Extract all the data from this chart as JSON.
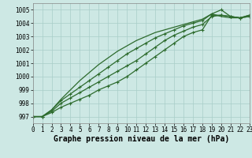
{
  "xlabel": "Graphe pression niveau de la mer (hPa)",
  "xlim": [
    0,
    23
  ],
  "ylim": [
    996.5,
    1005.5
  ],
  "yticks": [
    997,
    998,
    999,
    1000,
    1001,
    1002,
    1003,
    1004,
    1005
  ],
  "xticks": [
    0,
    1,
    2,
    3,
    4,
    5,
    6,
    7,
    8,
    9,
    10,
    11,
    12,
    13,
    14,
    15,
    16,
    17,
    18,
    19,
    20,
    21,
    22,
    23
  ],
  "bg_color": "#cde8e4",
  "grid_color": "#a8cec8",
  "line_color": "#2d6b2d",
  "series": [
    [
      997.0,
      997.0,
      997.3,
      997.7,
      998.0,
      998.3,
      998.6,
      999.0,
      999.3,
      999.6,
      1000.0,
      1000.5,
      1001.0,
      1001.5,
      1002.0,
      1002.5,
      1003.0,
      1003.3,
      1003.5,
      1004.6,
      1004.6,
      1004.5,
      1004.4,
      1004.5
    ],
    [
      997.0,
      997.0,
      997.4,
      998.0,
      998.4,
      998.8,
      999.2,
      999.6,
      1000.0,
      1000.4,
      1000.8,
      1001.2,
      1001.7,
      1002.2,
      1002.7,
      1003.1,
      1003.4,
      1003.7,
      1003.9,
      1004.5,
      1004.6,
      1004.5,
      1004.4,
      1004.5
    ],
    [
      997.0,
      997.0,
      997.5,
      998.2,
      998.7,
      999.2,
      999.7,
      1000.2,
      1000.7,
      1001.2,
      1001.7,
      1002.1,
      1002.5,
      1002.9,
      1003.2,
      1003.5,
      1003.8,
      1004.0,
      1004.2,
      1004.7,
      1005.0,
      1004.5,
      1004.4,
      1004.6
    ],
    [
      997.0,
      997.0,
      997.5,
      998.3,
      999.0,
      999.7,
      1000.3,
      1000.9,
      1001.4,
      1001.9,
      1002.3,
      1002.7,
      1003.0,
      1003.3,
      1003.5,
      1003.7,
      1003.9,
      1004.1,
      1004.3,
      1004.7,
      1004.5,
      1004.4,
      1004.4,
      1004.6
    ]
  ],
  "has_marker": [
    true,
    true,
    true,
    false
  ],
  "marker": "+",
  "marker_size": 3.5,
  "marker_edge_width": 0.8,
  "line_width": 0.9,
  "tick_fontsize": 5.5,
  "xlabel_fontsize": 7,
  "xlabel_fontweight": "bold"
}
